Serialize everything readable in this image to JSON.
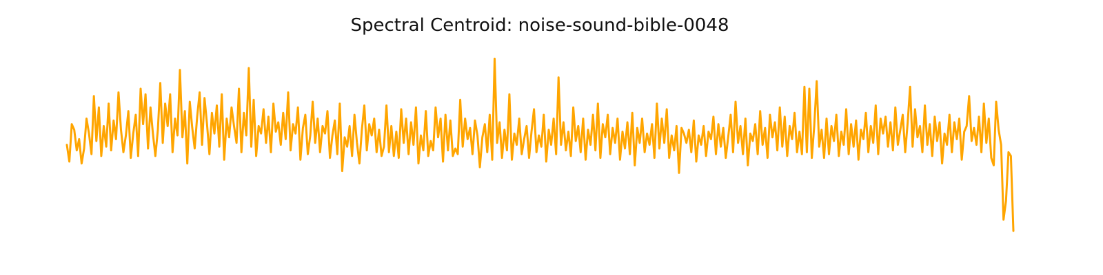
{
  "chart_data": {
    "type": "line",
    "title": "Spectral Centroid: noise-sound-bible-0048",
    "xlabel": "",
    "ylabel": "",
    "axes_visible": false,
    "grid": false,
    "legend": "none",
    "line_color": "#FFA500",
    "series": [
      {
        "values": [
          0.52,
          0.43,
          0.63,
          0.6,
          0.49,
          0.55,
          0.42,
          0.5,
          0.66,
          0.58,
          0.47,
          0.78,
          0.54,
          0.72,
          0.46,
          0.62,
          0.51,
          0.74,
          0.49,
          0.65,
          0.55,
          0.8,
          0.6,
          0.48,
          0.57,
          0.7,
          0.45,
          0.58,
          0.68,
          0.46,
          0.82,
          0.63,
          0.79,
          0.5,
          0.72,
          0.58,
          0.46,
          0.6,
          0.85,
          0.53,
          0.74,
          0.62,
          0.79,
          0.48,
          0.66,
          0.57,
          0.92,
          0.56,
          0.7,
          0.42,
          0.75,
          0.61,
          0.5,
          0.67,
          0.8,
          0.52,
          0.77,
          0.63,
          0.47,
          0.69,
          0.58,
          0.73,
          0.51,
          0.79,
          0.44,
          0.66,
          0.56,
          0.72,
          0.62,
          0.53,
          0.82,
          0.48,
          0.69,
          0.57,
          0.93,
          0.51,
          0.76,
          0.46,
          0.62,
          0.58,
          0.71,
          0.53,
          0.67,
          0.48,
          0.74,
          0.59,
          0.64,
          0.52,
          0.69,
          0.55,
          0.8,
          0.49,
          0.63,
          0.58,
          0.72,
          0.44,
          0.61,
          0.68,
          0.47,
          0.57,
          0.75,
          0.53,
          0.66,
          0.48,
          0.62,
          0.58,
          0.7,
          0.45,
          0.57,
          0.65,
          0.47,
          0.74,
          0.38,
          0.56,
          0.51,
          0.62,
          0.46,
          0.68,
          0.53,
          0.42,
          0.6,
          0.73,
          0.49,
          0.63,
          0.57,
          0.66,
          0.48,
          0.6,
          0.46,
          0.51,
          0.73,
          0.48,
          0.62,
          0.46,
          0.59,
          0.45,
          0.71,
          0.53,
          0.66,
          0.47,
          0.64,
          0.52,
          0.72,
          0.42,
          0.57,
          0.49,
          0.7,
          0.46,
          0.54,
          0.49,
          0.72,
          0.56,
          0.66,
          0.43,
          0.68,
          0.49,
          0.65,
          0.46,
          0.5,
          0.47,
          0.76,
          0.51,
          0.66,
          0.55,
          0.61,
          0.47,
          0.65,
          0.57,
          0.4,
          0.56,
          0.63,
          0.48,
          0.68,
          0.44,
          0.98,
          0.53,
          0.64,
          0.45,
          0.6,
          0.49,
          0.79,
          0.44,
          0.58,
          0.52,
          0.66,
          0.47,
          0.55,
          0.62,
          0.45,
          0.59,
          0.71,
          0.48,
          0.57,
          0.51,
          0.68,
          0.43,
          0.6,
          0.52,
          0.66,
          0.47,
          0.88,
          0.52,
          0.64,
          0.49,
          0.59,
          0.46,
          0.72,
          0.54,
          0.62,
          0.48,
          0.66,
          0.44,
          0.6,
          0.52,
          0.68,
          0.49,
          0.74,
          0.45,
          0.63,
          0.56,
          0.68,
          0.47,
          0.61,
          0.53,
          0.66,
          0.44,
          0.59,
          0.5,
          0.64,
          0.47,
          0.69,
          0.41,
          0.61,
          0.53,
          0.66,
          0.48,
          0.58,
          0.52,
          0.63,
          0.45,
          0.74,
          0.5,
          0.66,
          0.53,
          0.71,
          0.45,
          0.57,
          0.49,
          0.62,
          0.37,
          0.61,
          0.58,
          0.53,
          0.6,
          0.48,
          0.65,
          0.43,
          0.57,
          0.52,
          0.62,
          0.46,
          0.59,
          0.55,
          0.67,
          0.47,
          0.63,
          0.51,
          0.61,
          0.45,
          0.56,
          0.68,
          0.48,
          0.75,
          0.53,
          0.62,
          0.47,
          0.66,
          0.41,
          0.58,
          0.54,
          0.63,
          0.47,
          0.7,
          0.52,
          0.61,
          0.45,
          0.68,
          0.56,
          0.64,
          0.49,
          0.72,
          0.51,
          0.67,
          0.46,
          0.62,
          0.55,
          0.69,
          0.48,
          0.59,
          0.47,
          0.83,
          0.48,
          0.82,
          0.45,
          0.62,
          0.86,
          0.51,
          0.6,
          0.45,
          0.66,
          0.47,
          0.62,
          0.54,
          0.68,
          0.46,
          0.59,
          0.52,
          0.71,
          0.47,
          0.63,
          0.51,
          0.65,
          0.44,
          0.6,
          0.55,
          0.69,
          0.48,
          0.62,
          0.53,
          0.73,
          0.47,
          0.66,
          0.58,
          0.67,
          0.51,
          0.64,
          0.49,
          0.72,
          0.52,
          0.6,
          0.68,
          0.48,
          0.64,
          0.83,
          0.51,
          0.71,
          0.56,
          0.62,
          0.48,
          0.73,
          0.52,
          0.63,
          0.46,
          0.67,
          0.54,
          0.64,
          0.42,
          0.58,
          0.52,
          0.68,
          0.48,
          0.64,
          0.55,
          0.66,
          0.44,
          0.59,
          0.62,
          0.78,
          0.54,
          0.61,
          0.52,
          0.67,
          0.48,
          0.74,
          0.53,
          0.66,
          0.45,
          0.41,
          0.75,
          0.6,
          0.52,
          0.12,
          0.22,
          0.48,
          0.46,
          0.06
        ]
      }
    ]
  }
}
